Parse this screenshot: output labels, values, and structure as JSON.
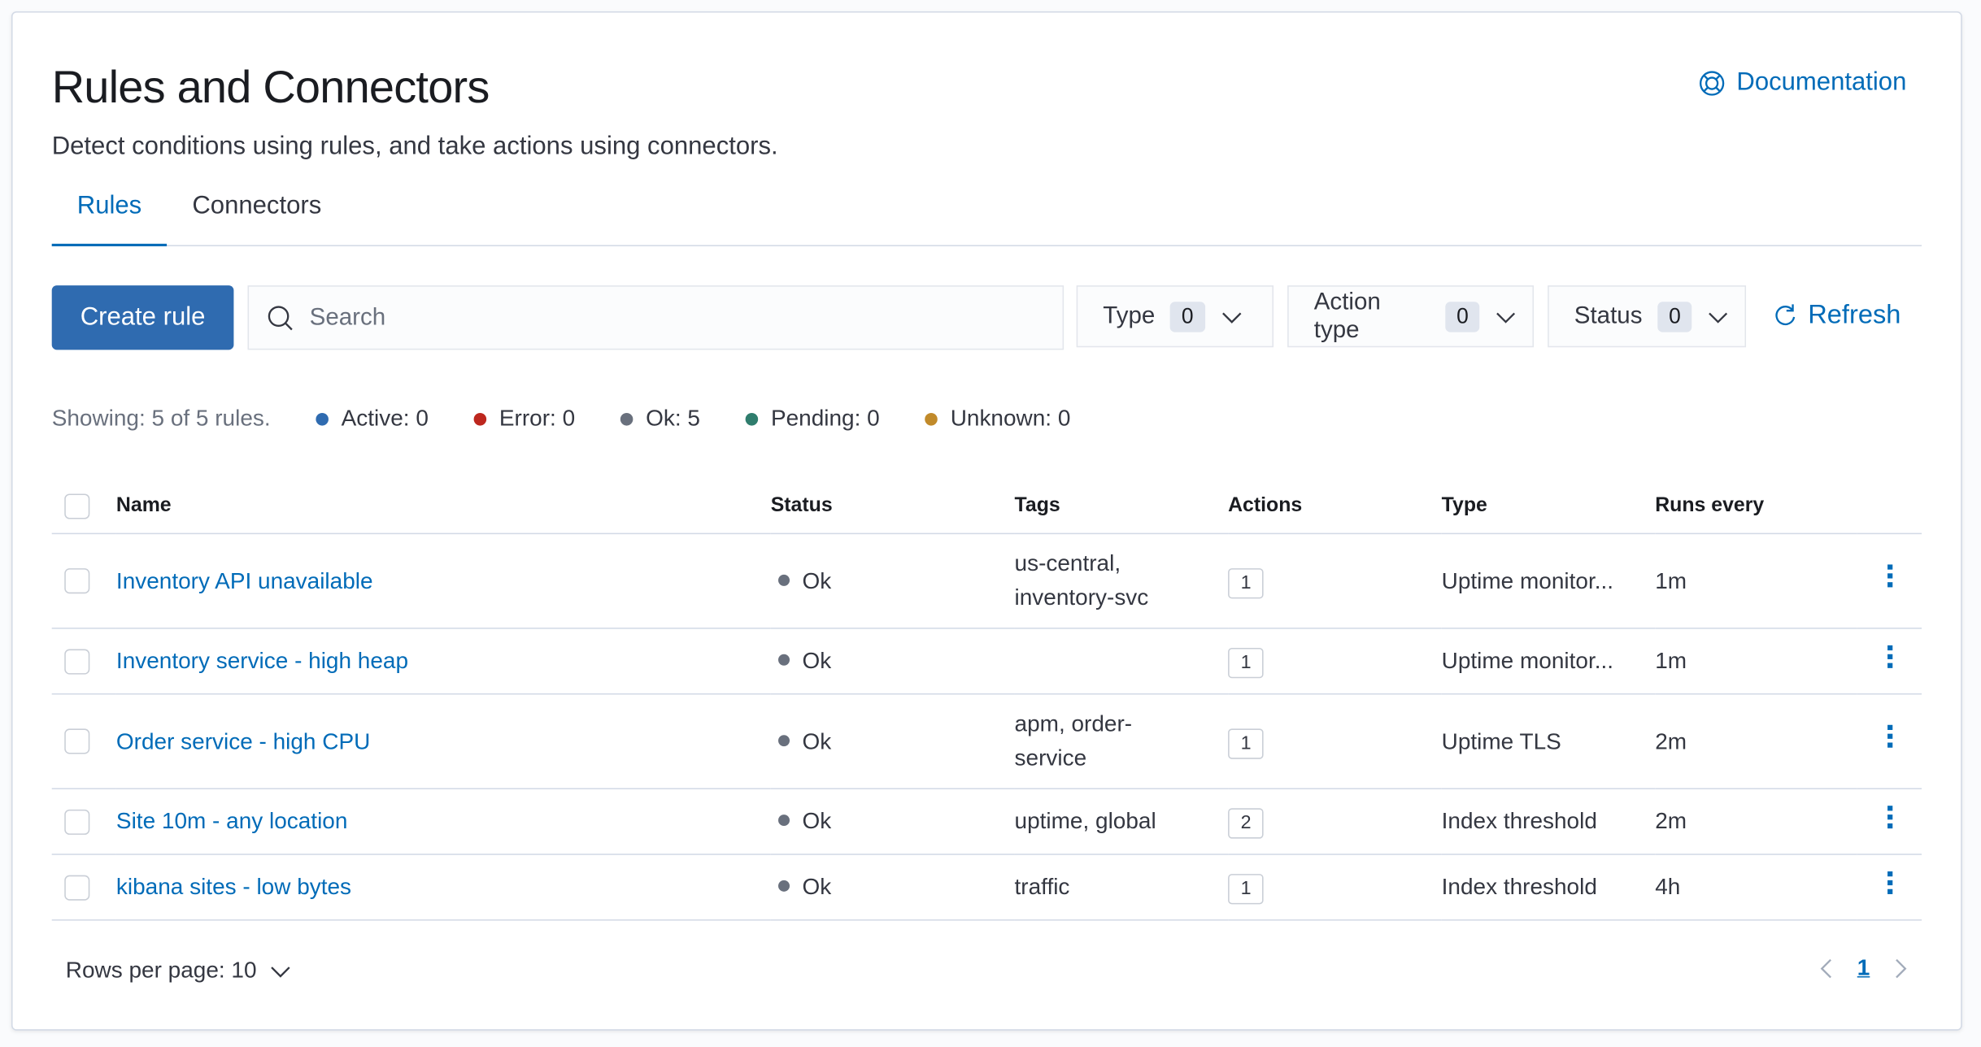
{
  "header": {
    "title": "Rules and Connectors",
    "subtitle": "Detect conditions using rules, and take actions using connectors.",
    "documentation_label": "Documentation"
  },
  "tabs": [
    {
      "label": "Rules",
      "active": true
    },
    {
      "label": "Connectors",
      "active": false
    }
  ],
  "toolbar": {
    "create_label": "Create rule",
    "search_placeholder": "Search",
    "search_value": "",
    "filters": [
      {
        "label": "Type",
        "count": "0"
      },
      {
        "label": "Action type",
        "count": "0"
      },
      {
        "label": "Status",
        "count": "0"
      }
    ],
    "refresh_label": "Refresh"
  },
  "stats": {
    "showing": "Showing: 5 of 5 rules.",
    "items": [
      {
        "label": "Active: 0",
        "color": "#2f6bb0"
      },
      {
        "label": "Error: 0",
        "color": "#bd271e"
      },
      {
        "label": "Ok: 5",
        "color": "#69707d"
      },
      {
        "label": "Pending: 0",
        "color": "#2f7d6d"
      },
      {
        "label": "Unknown: 0",
        "color": "#c18a2a"
      }
    ]
  },
  "table": {
    "columns": [
      "Name",
      "Status",
      "Tags",
      "Actions",
      "Type",
      "Runs every"
    ],
    "rows": [
      {
        "name": "Inventory API unavailable",
        "status": "Ok",
        "tags": [
          "us-central,",
          "inventory-svc"
        ],
        "actions": "1",
        "type": "Uptime monitor...",
        "runs": "1m"
      },
      {
        "name": "Inventory service - high heap",
        "status": "Ok",
        "tags": [],
        "actions": "1",
        "type": "Uptime monitor...",
        "runs": "1m"
      },
      {
        "name": "Order service - high CPU",
        "status": "Ok",
        "tags": [
          "apm, order-",
          "service"
        ],
        "actions": "1",
        "type": "Uptime TLS",
        "runs": "2m"
      },
      {
        "name": "Site 10m - any location",
        "status": "Ok",
        "tags": [
          "uptime, global"
        ],
        "actions": "2",
        "type": "Index threshold",
        "runs": "2m"
      },
      {
        "name": "kibana sites - low bytes",
        "status": "Ok",
        "tags": [
          "traffic"
        ],
        "actions": "1",
        "type": "Index threshold",
        "runs": "4h"
      }
    ]
  },
  "footer": {
    "rows_per_page": "Rows per page: 10",
    "current_page": "1"
  }
}
